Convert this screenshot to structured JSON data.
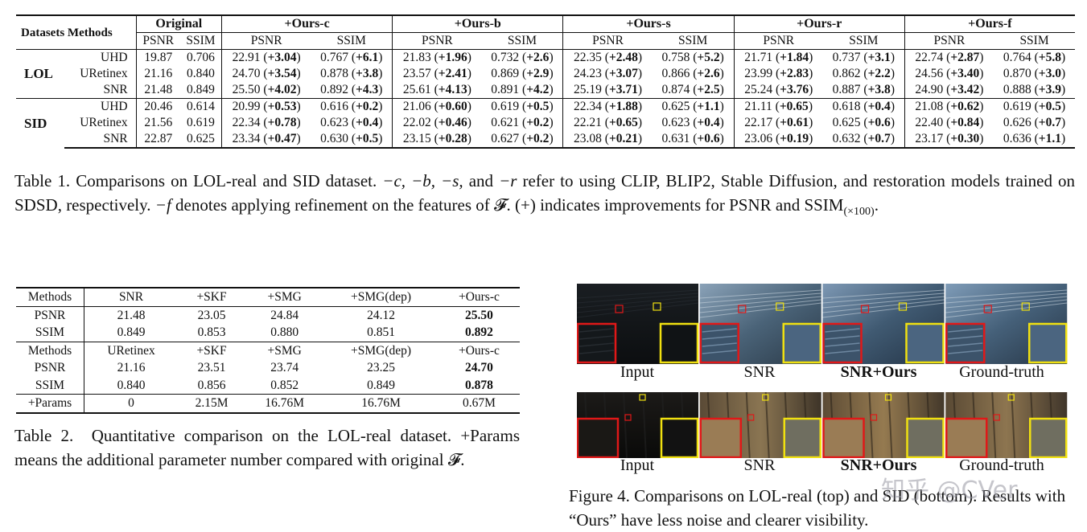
{
  "table1": {
    "header_top": [
      "Original",
      "+Ours-c",
      "+Ours-b",
      "+Ours-s",
      "+Ours-r",
      "+Ours-f"
    ],
    "datasets_label": "Datasets",
    "methods_label": "Methods",
    "psnr": "PSNR",
    "ssim": "SSIM",
    "blocks": [
      {
        "dataset": "LOL",
        "rows": [
          {
            "method": "UHD",
            "orig": [
              "19.87",
              "0.706"
            ],
            "cells": [
              [
                "22.91",
                "+3.04",
                "0.767",
                "+6.1"
              ],
              [
                "21.83",
                "+1.96",
                "0.732",
                "+2.6"
              ],
              [
                "22.35",
                "+2.48",
                "0.758",
                "+5.2"
              ],
              [
                "21.71",
                "+1.84",
                "0.737",
                "+3.1"
              ],
              [
                "22.74",
                "+2.87",
                "0.764",
                "+5.8"
              ]
            ]
          },
          {
            "method": "URetinex",
            "orig": [
              "21.16",
              "0.840"
            ],
            "cells": [
              [
                "24.70",
                "+3.54",
                "0.878",
                "+3.8"
              ],
              [
                "23.57",
                "+2.41",
                "0.869",
                "+2.9"
              ],
              [
                "24.23",
                "+3.07",
                "0.866",
                "+2.6"
              ],
              [
                "23.99",
                "+2.83",
                "0.862",
                "+2.2"
              ],
              [
                "24.56",
                "+3.40",
                "0.870",
                "+3.0"
              ]
            ]
          },
          {
            "method": "SNR",
            "orig": [
              "21.48",
              "0.849"
            ],
            "cells": [
              [
                "25.50",
                "+4.02",
                "0.892",
                "+4.3"
              ],
              [
                "25.61",
                "+4.13",
                "0.891",
                "+4.2"
              ],
              [
                "25.19",
                "+3.71",
                "0.874",
                "+2.5"
              ],
              [
                "25.24",
                "+3.76",
                "0.887",
                "+3.8"
              ],
              [
                "24.90",
                "+3.42",
                "0.888",
                "+3.9"
              ]
            ]
          }
        ]
      },
      {
        "dataset": "SID",
        "rows": [
          {
            "method": "UHD",
            "orig": [
              "20.46",
              "0.614"
            ],
            "cells": [
              [
                "20.99",
                "+0.53",
                "0.616",
                "+0.2"
              ],
              [
                "21.06",
                "+0.60",
                "0.619",
                "+0.5"
              ],
              [
                "22.34",
                "+1.88",
                "0.625",
                "+1.1"
              ],
              [
                "21.11",
                "+0.65",
                "0.618",
                "+0.4"
              ],
              [
                "21.08",
                "+0.62",
                "0.619",
                "+0.5"
              ]
            ]
          },
          {
            "method": "URetinex",
            "orig": [
              "21.56",
              "0.619"
            ],
            "cells": [
              [
                "22.34",
                "+0.78",
                "0.623",
                "+0.4"
              ],
              [
                "22.02",
                "+0.46",
                "0.621",
                "+0.2"
              ],
              [
                "22.21",
                "+0.65",
                "0.623",
                "+0.4"
              ],
              [
                "22.17",
                "+0.61",
                "0.625",
                "+0.6"
              ],
              [
                "22.40",
                "+0.84",
                "0.626",
                "+0.7"
              ]
            ]
          },
          {
            "method": "SNR",
            "orig": [
              "22.87",
              "0.625"
            ],
            "cells": [
              [
                "23.34",
                "+0.47",
                "0.630",
                "+0.5"
              ],
              [
                "23.15",
                "+0.28",
                "0.627",
                "+0.2"
              ],
              [
                "23.08",
                "+0.21",
                "0.631",
                "+0.6"
              ],
              [
                "23.06",
                "+0.19",
                "0.632",
                "+0.7"
              ],
              [
                "23.17",
                "+0.30",
                "0.636",
                "+1.1"
              ]
            ]
          }
        ]
      }
    ]
  },
  "caption1": {
    "label": "Table 1.",
    "part1": "Comparisons on LOL-real and SID dataset.",
    "part2": "refer to using CLIP, BLIP2, Stable Diffusion, and restoration models trained on SDSD, respectively.",
    "part3": "denotes applying refinement on the features of",
    "part4": "(+) indicates improvements for PSNR and SSIM",
    "sub": "(×100)",
    "sym_c": "−c,",
    "sym_b": "−b,",
    "sym_s": "−s,",
    "and": "and",
    "sym_r": "−r",
    "sym_f": "−f",
    "F": "𝓕."
  },
  "table2": {
    "rows": [
      [
        "Methods",
        "SNR",
        "+SKF",
        "+SMG",
        "+SMG(dep)",
        "+Ours-c"
      ],
      [
        "PSNR",
        "21.48",
        "23.05",
        "24.84",
        "24.12",
        "25.50"
      ],
      [
        "SSIM",
        "0.849",
        "0.853",
        "0.880",
        "0.851",
        "0.892"
      ],
      [
        "Methods",
        "URetinex",
        "+SKF",
        "+SMG",
        "+SMG(dep)",
        "+Ours-c"
      ],
      [
        "PSNR",
        "21.16",
        "23.51",
        "23.74",
        "23.25",
        "24.70"
      ],
      [
        "SSIM",
        "0.840",
        "0.856",
        "0.852",
        "0.849",
        "0.878"
      ],
      [
        "+Params",
        "0",
        "2.15M",
        "16.76M",
        "16.76M",
        "0.67M"
      ]
    ]
  },
  "caption2": {
    "label": "Table 2.",
    "text": "Quantitative comparison on the LOL-real dataset. +Params means the additional parameter number compared with original",
    "F": "𝓕."
  },
  "figure4": {
    "labels": [
      "Input",
      "SNR",
      "SNR+Ours",
      "Ground-truth"
    ],
    "caption_label": "Figure 4.",
    "caption": "Comparisons on LOL-real (top) and SID (bottom). Results with “Ours” have less noise and clearer visibility.",
    "colors": {
      "zoom_red": "#e01818",
      "zoom_yellow": "#f0e010"
    }
  },
  "watermark": "知乎 @CVer"
}
